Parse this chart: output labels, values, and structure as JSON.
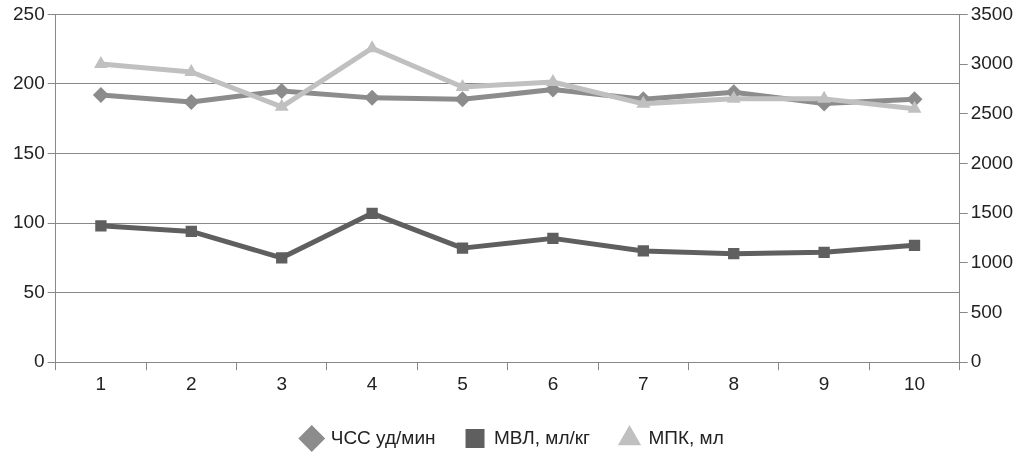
{
  "chart_data": {
    "type": "line",
    "categories": [
      "1",
      "2",
      "3",
      "4",
      "5",
      "6",
      "7",
      "8",
      "9",
      "10"
    ],
    "series": [
      {
        "name": "ЧСС уд/мин",
        "color": "#8c8c8c",
        "marker": "diamond",
        "values": [
          192,
          187,
          195,
          190,
          189,
          196,
          189,
          194,
          186,
          189
        ]
      },
      {
        "name": "МВЛ, мл/кг",
        "color": "#5f5f5f",
        "marker": "square",
        "values": [
          98,
          94,
          75,
          107,
          82,
          89,
          80,
          78,
          79,
          84
        ]
      },
      {
        "name": "МПК, мл",
        "color": "#c0c0c0",
        "marker": "triangle",
        "axis": "y2",
        "values": [
          3000,
          2920,
          2570,
          3160,
          2770,
          2820,
          2600,
          2650,
          2650,
          2550
        ]
      }
    ],
    "ylim": [
      0,
      250
    ],
    "yticks": [
      0,
      50,
      100,
      150,
      200,
      250
    ],
    "y2lim": [
      0,
      3500
    ],
    "y2ticks": [
      0,
      500,
      1000,
      1500,
      2000,
      2500,
      3000,
      3500
    ],
    "grid": "y",
    "legend": "bottom"
  }
}
